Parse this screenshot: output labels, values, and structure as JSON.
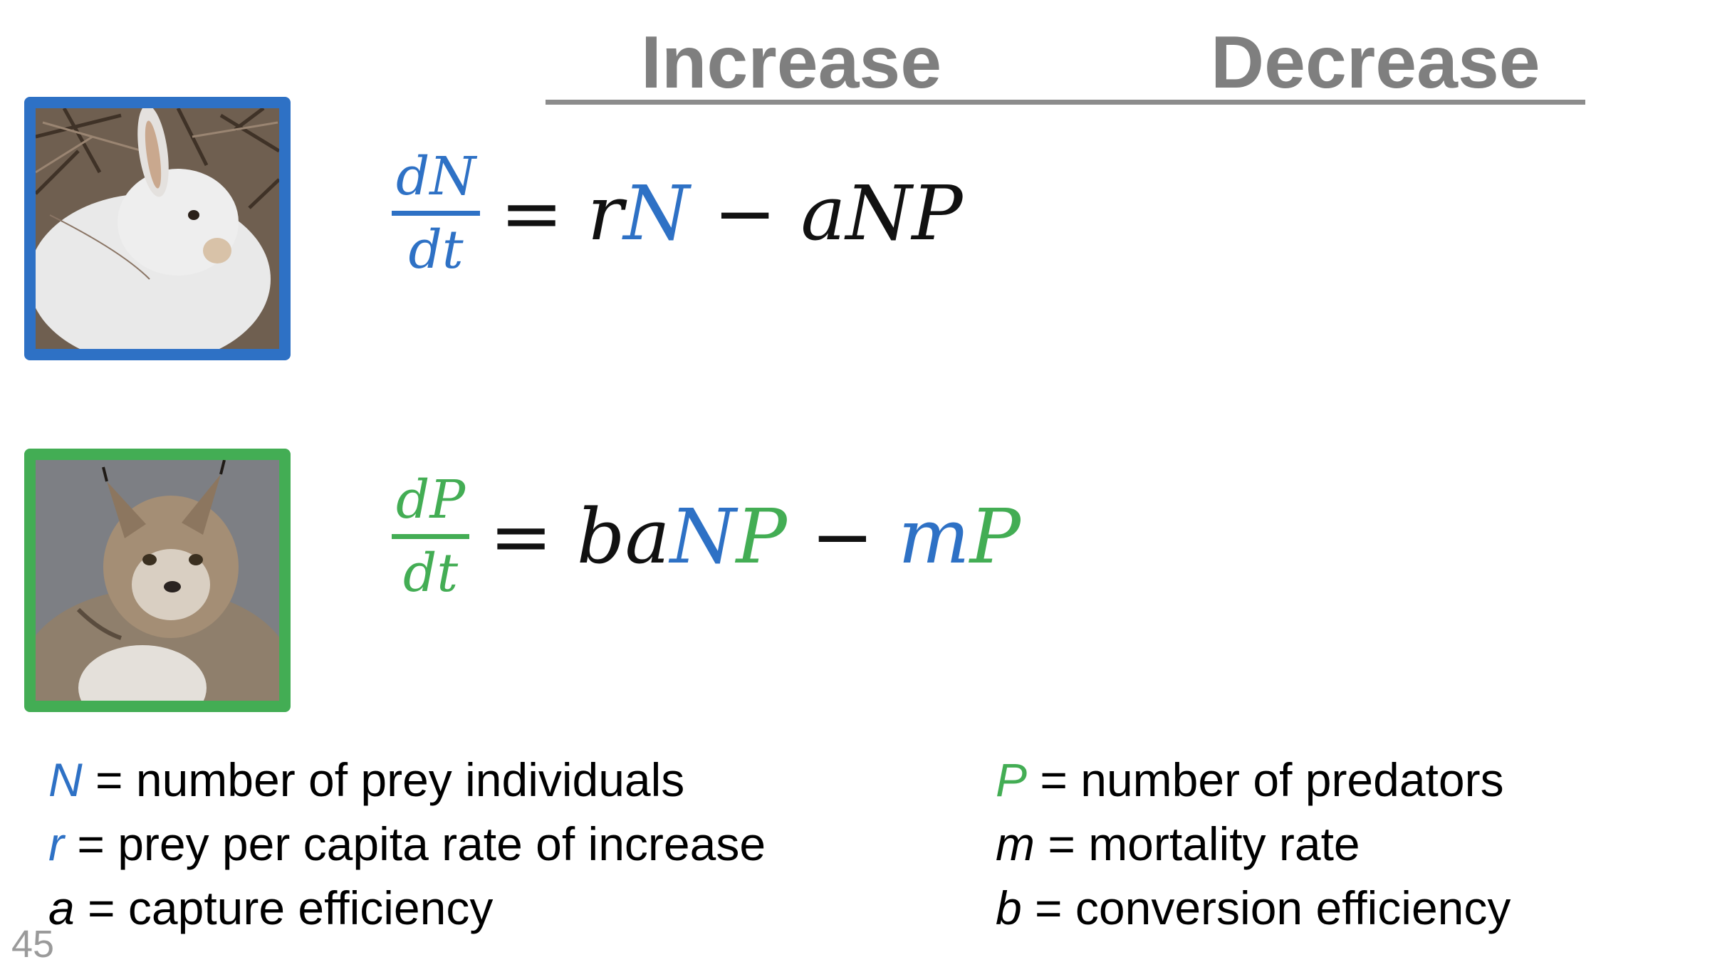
{
  "headers": {
    "increase": "Increase",
    "decrease": "Decrease"
  },
  "colors": {
    "prey_blue": "#2e71c5",
    "predator_green": "#43ad54",
    "header_gray": "#7f7f7f"
  },
  "images": {
    "prey": "snowshoe hare photo",
    "predator": "lynx photo"
  },
  "prey_equation": {
    "numerator": "dN",
    "denominator": "dt",
    "equals": "=",
    "r": "r",
    "N": "N",
    "minus": "−",
    "aNP": "aNP"
  },
  "predator_equation": {
    "numerator": "dP",
    "denominator": "dt",
    "equals": "=",
    "ba": "ba",
    "N": "N",
    "P": "P",
    "minus": "−",
    "m": "m",
    "P2": "P"
  },
  "definitions": {
    "left": [
      {
        "symbol": "N",
        "text": " = number of prey individuals"
      },
      {
        "symbol": "r",
        "text": " = prey per capita rate of increase"
      },
      {
        "symbol": "a",
        "text": " = capture efficiency"
      }
    ],
    "right": [
      {
        "symbol": "P",
        "text": " = number of predators"
      },
      {
        "symbol": "m",
        "text": " = mortality rate"
      },
      {
        "symbol": "b",
        "text": " = conversion efficiency"
      }
    ]
  },
  "page_number": "45"
}
